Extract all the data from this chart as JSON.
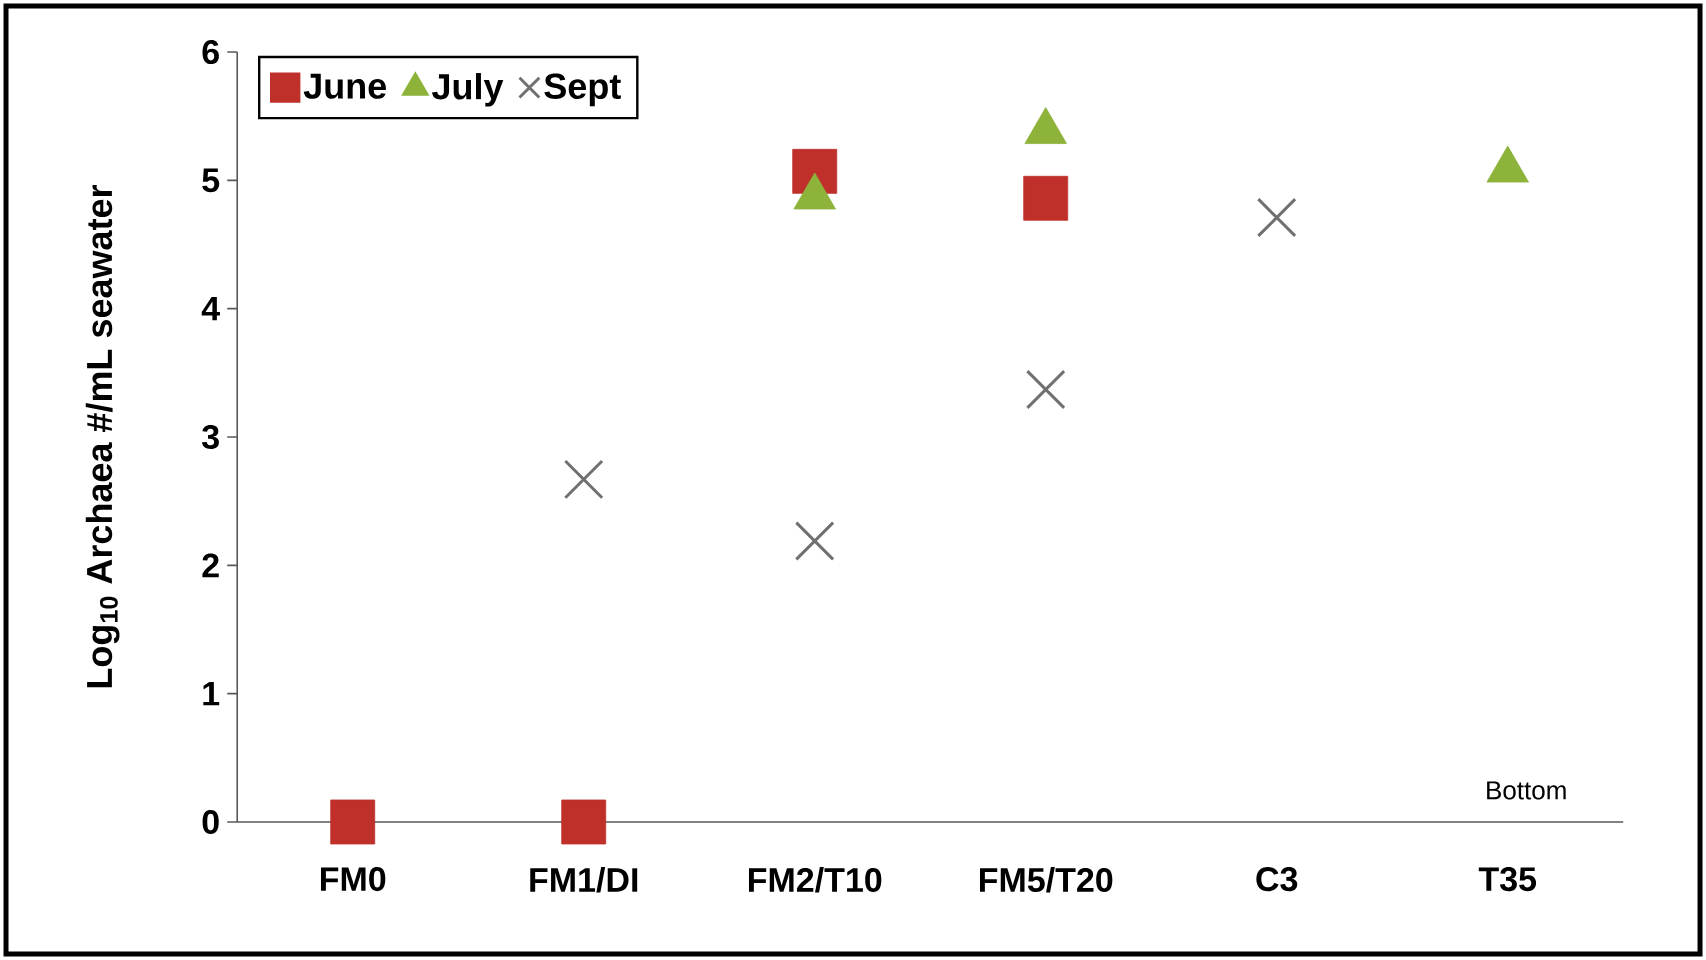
{
  "chart_data": {
    "type": "scatter",
    "ylabel": "Log$_{10}$ Archaea #/mL seawater",
    "categories": [
      "FM0",
      "FM1/DI",
      "FM2/T10",
      "FM5/T20",
      "C3",
      "T35"
    ],
    "series": [
      {
        "name": "June",
        "color": "#c0302b",
        "marker": "square",
        "values": [
          0,
          0,
          5.07,
          4.86,
          null,
          null
        ]
      },
      {
        "name": "July",
        "color": "#8db33a",
        "marker": "triangle",
        "values": [
          null,
          null,
          4.87,
          5.38,
          null,
          5.08
        ]
      },
      {
        "name": "Sept",
        "color": "#707070",
        "marker": "cross",
        "values": [
          null,
          2.67,
          2.19,
          3.37,
          4.71,
          null
        ]
      }
    ],
    "ylim": [
      0,
      6
    ],
    "yticks": [
      0,
      1,
      2,
      3,
      4,
      5,
      6
    ],
    "grid": false,
    "legend": "top left",
    "annotations": [
      "Bottom"
    ]
  }
}
